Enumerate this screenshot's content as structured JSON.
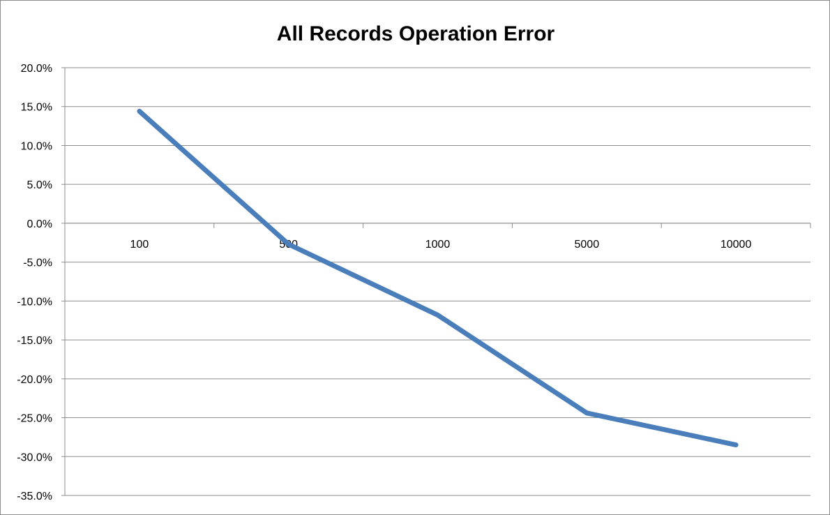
{
  "chart_data": {
    "type": "line",
    "title": "All Records Operation Error",
    "xlabel": "",
    "ylabel": "",
    "categories": [
      "100",
      "500",
      "1000",
      "5000",
      "10000"
    ],
    "series": [
      {
        "values": [
          14.4,
          -2.7,
          -11.8,
          -24.4,
          -28.5
        ]
      }
    ],
    "ylim": [
      -35,
      20
    ],
    "y_step": 5,
    "y_tick_format": "percent_1dp",
    "grid": true,
    "legend": "none",
    "line_color": "#4a7ebb"
  }
}
